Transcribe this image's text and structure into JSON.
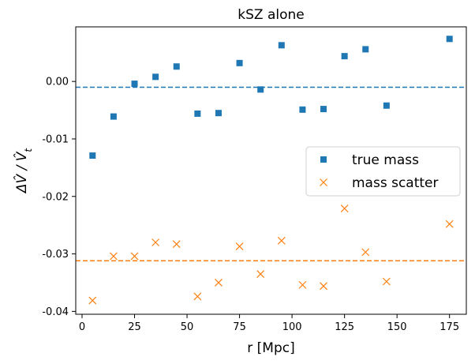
{
  "chart_data": {
    "type": "scatter",
    "title": "kSZ alone",
    "xlabel": "r [Mpc]",
    "ylabel": "ΔV̂ / V̂_t",
    "xlim": [
      -3,
      183
    ],
    "ylim": [
      -0.0405,
      0.0095
    ],
    "xticks": [
      0,
      25,
      50,
      75,
      100,
      125,
      150,
      175
    ],
    "xtick_labels": [
      "0",
      "25",
      "50",
      "75",
      "100",
      "125",
      "150",
      "175"
    ],
    "yticks": [
      -0.04,
      -0.03,
      -0.02,
      -0.01,
      0.0
    ],
    "ytick_labels": [
      "-0.04",
      "-0.03",
      "-0.02",
      "-0.01",
      "0.00"
    ],
    "legend_position": "center-right",
    "series": [
      {
        "name": "true mass",
        "marker": "square",
        "color": "#1f77b4",
        "mean_line": -0.001,
        "x": [
          5,
          15,
          25,
          35,
          45,
          55,
          65,
          75,
          85,
          95,
          105,
          115,
          125,
          135,
          145,
          175
        ],
        "y": [
          -0.0129,
          -0.0061,
          -0.0004,
          0.0008,
          0.0026,
          -0.0056,
          -0.0055,
          0.0032,
          -0.0014,
          0.0063,
          -0.0049,
          -0.0048,
          0.0044,
          0.0056,
          -0.0042,
          0.0074
        ]
      },
      {
        "name": "mass scatter",
        "marker": "x",
        "color": "#ff7f0e",
        "mean_line": -0.0312,
        "x": [
          5,
          15,
          25,
          35,
          45,
          55,
          65,
          75,
          85,
          95,
          105,
          115,
          125,
          135,
          145,
          175
        ],
        "y": [
          -0.0381,
          -0.0304,
          -0.0304,
          -0.028,
          -0.0283,
          -0.0374,
          -0.035,
          -0.0287,
          -0.0335,
          -0.0277,
          -0.0354,
          -0.0356,
          -0.0221,
          -0.0297,
          -0.0348,
          -0.0248
        ]
      }
    ]
  }
}
